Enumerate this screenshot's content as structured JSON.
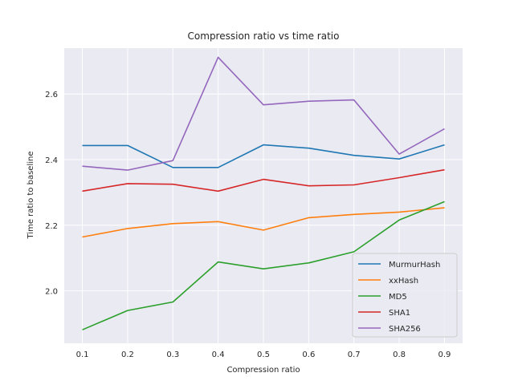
{
  "chart_data": {
    "type": "line",
    "title": "Compression ratio vs time ratio",
    "xlabel": "Compression ratio",
    "ylabel": "Time ratio to baseline",
    "x": [
      0.1,
      0.2,
      0.3,
      0.4,
      0.5,
      0.6,
      0.7,
      0.8,
      0.9
    ],
    "x_tick_labels": [
      "0.1",
      "0.2",
      "0.3",
      "0.4",
      "0.5",
      "0.6",
      "0.7",
      "0.8",
      "0.9"
    ],
    "xlim": [
      0.06,
      0.94
    ],
    "ylim": [
      1.84,
      2.74
    ],
    "y_ticks": [
      2.0,
      2.2,
      2.4,
      2.6
    ],
    "y_tick_labels": [
      "2.0",
      "2.2",
      "2.4",
      "2.6"
    ],
    "grid": true,
    "legend_position": "lower-right",
    "series": [
      {
        "name": "MurmurHash",
        "color": "#1f77b4",
        "values": [
          2.443,
          2.443,
          2.376,
          2.376,
          2.445,
          2.435,
          2.413,
          2.402,
          2.445
        ]
      },
      {
        "name": "xxHash",
        "color": "#ff7f0e",
        "values": [
          2.164,
          2.19,
          2.205,
          2.211,
          2.185,
          2.223,
          2.233,
          2.24,
          2.253
        ]
      },
      {
        "name": "MD5",
        "color": "#2ca02c",
        "values": [
          1.881,
          1.94,
          1.966,
          2.088,
          2.067,
          2.085,
          2.119,
          2.216,
          2.272
        ]
      },
      {
        "name": "SHA1",
        "color": "#d62728",
        "values": [
          2.304,
          2.327,
          2.325,
          2.304,
          2.34,
          2.32,
          2.323,
          2.345,
          2.369
        ]
      },
      {
        "name": "SHA256",
        "color": "#9467bd",
        "values": [
          2.38,
          2.368,
          2.397,
          2.712,
          2.567,
          2.578,
          2.582,
          2.417,
          2.494
        ]
      }
    ]
  }
}
